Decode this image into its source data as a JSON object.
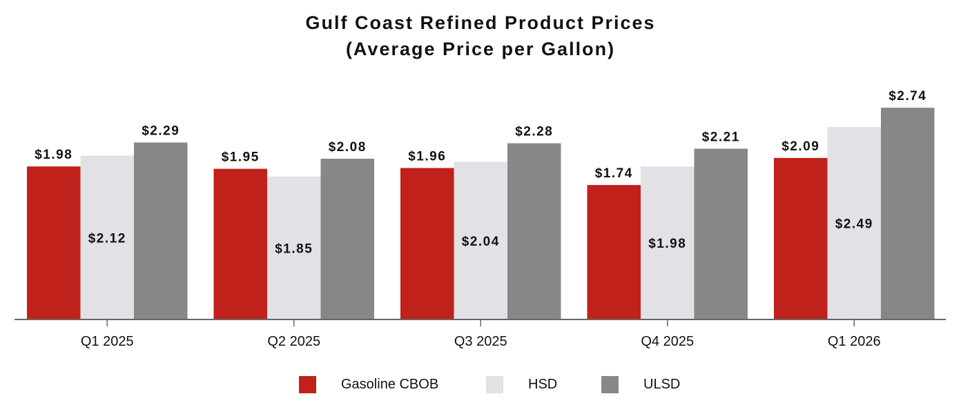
{
  "colors": {
    "gasoline": "#c0211a",
    "hsd": "#e1e1e6",
    "ulsd": "#878787",
    "axis": "#666666",
    "text": "#111111"
  },
  "chart_data": {
    "type": "bar",
    "title_line1": "Gulf Coast Refined Product Prices",
    "title_line2": "(Average Price per Gallon)",
    "categories": [
      "Q1 2025",
      "Q2 2025",
      "Q3 2025",
      "Q4 2025",
      "Q1 2026"
    ],
    "series": [
      {
        "name": "Gasoline CBOB",
        "values": [
          1.98,
          1.95,
          1.96,
          1.74,
          2.09
        ],
        "labels": [
          "$1.98",
          "$1.95",
          "$1.96",
          "$1.74",
          "$2.09"
        ],
        "label_position": "above",
        "color_key": "gasoline"
      },
      {
        "name": "HSD",
        "values": [
          2.12,
          1.85,
          2.04,
          1.98,
          2.49
        ],
        "labels": [
          "$2.12",
          "$1.85",
          "$2.04",
          "$1.98",
          "$2.49"
        ],
        "label_position": "inside",
        "color_key": "hsd"
      },
      {
        "name": "ULSD",
        "values": [
          2.29,
          2.08,
          2.28,
          2.21,
          2.74
        ],
        "labels": [
          "$2.29",
          "$2.08",
          "$2.28",
          "$2.21",
          "$2.74"
        ],
        "label_position": "above",
        "color_key": "ulsd"
      }
    ],
    "ylim": [
      0,
      3.0
    ],
    "grid": false,
    "legend_placement": "bottom"
  }
}
